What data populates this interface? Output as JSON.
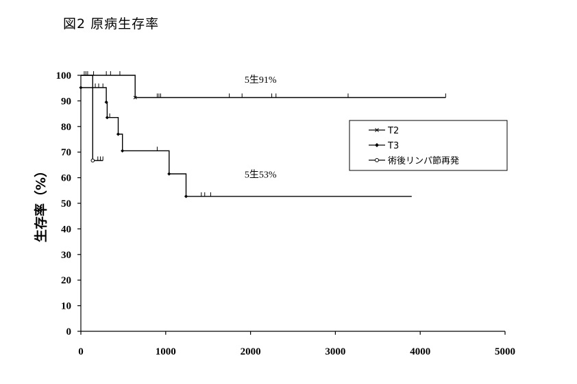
{
  "figure": {
    "title": "図2  原病生存率"
  },
  "chart_data": {
    "type": "line",
    "title": "図2  原病生存率",
    "xlabel": "",
    "ylabel": "生存率（%）",
    "xlim": [
      0,
      5000
    ],
    "ylim": [
      0,
      100
    ],
    "xticks": [
      0,
      1000,
      2000,
      3000,
      4000,
      5000
    ],
    "yticks": [
      0,
      10,
      20,
      30,
      40,
      50,
      60,
      70,
      80,
      90,
      100
    ],
    "grid": false,
    "legend_position": "right",
    "series": [
      {
        "name": "T2",
        "marker": "x",
        "steps": [
          [
            0,
            100
          ],
          [
            640,
            100
          ],
          [
            640,
            91.3
          ],
          [
            4300,
            91.3
          ]
        ],
        "event_points": [
          [
            640,
            91.3
          ]
        ],
        "censors": [
          [
            40,
            100
          ],
          [
            60,
            100
          ],
          [
            80,
            100
          ],
          [
            150,
            100
          ],
          [
            300,
            100
          ],
          [
            350,
            100
          ],
          [
            460,
            100
          ],
          [
            900,
            91.3
          ],
          [
            920,
            91.3
          ],
          [
            940,
            91.3
          ],
          [
            1750,
            91.3
          ],
          [
            1900,
            91.3
          ],
          [
            2250,
            91.3
          ],
          [
            2300,
            91.3
          ],
          [
            3150,
            91.3
          ],
          [
            4300,
            91.3
          ]
        ]
      },
      {
        "name": "T3",
        "marker": "diamond",
        "steps": [
          [
            0,
            95.2
          ],
          [
            300,
            95.2
          ],
          [
            300,
            89.5
          ],
          [
            310,
            89.5
          ],
          [
            310,
            83.5
          ],
          [
            440,
            83.5
          ],
          [
            440,
            77
          ],
          [
            490,
            77
          ],
          [
            490,
            70.5
          ],
          [
            1040,
            70.5
          ],
          [
            1040,
            61.5
          ],
          [
            1240,
            61.5
          ],
          [
            1240,
            52.7
          ],
          [
            3900,
            52.7
          ]
        ],
        "event_points": [
          [
            0,
            95.2
          ],
          [
            300,
            89.5
          ],
          [
            310,
            83.5
          ],
          [
            440,
            77
          ],
          [
            490,
            70.5
          ],
          [
            1040,
            61.5
          ],
          [
            1240,
            52.7
          ]
        ],
        "censors": [
          [
            170,
            95.2
          ],
          [
            210,
            95.2
          ],
          [
            260,
            95.2
          ],
          [
            340,
            83.5
          ],
          [
            900,
            70.5
          ],
          [
            1420,
            52.7
          ],
          [
            1460,
            52.7
          ],
          [
            1530,
            52.7
          ]
        ]
      },
      {
        "name": "術後リンパ節再発",
        "marker": "circle",
        "steps": [
          [
            0,
            100
          ],
          [
            140,
            100
          ],
          [
            140,
            66.7
          ],
          [
            260,
            66.7
          ]
        ],
        "event_points": [
          [
            140,
            66.7
          ]
        ],
        "censors": [
          [
            200,
            66.7
          ],
          [
            230,
            66.7
          ],
          [
            260,
            66.7
          ]
        ]
      }
    ],
    "annotations": [
      {
        "text": "5生91%",
        "x": 1930,
        "y": 97
      },
      {
        "text": "5生53%",
        "x": 1930,
        "y": 60
      }
    ]
  }
}
